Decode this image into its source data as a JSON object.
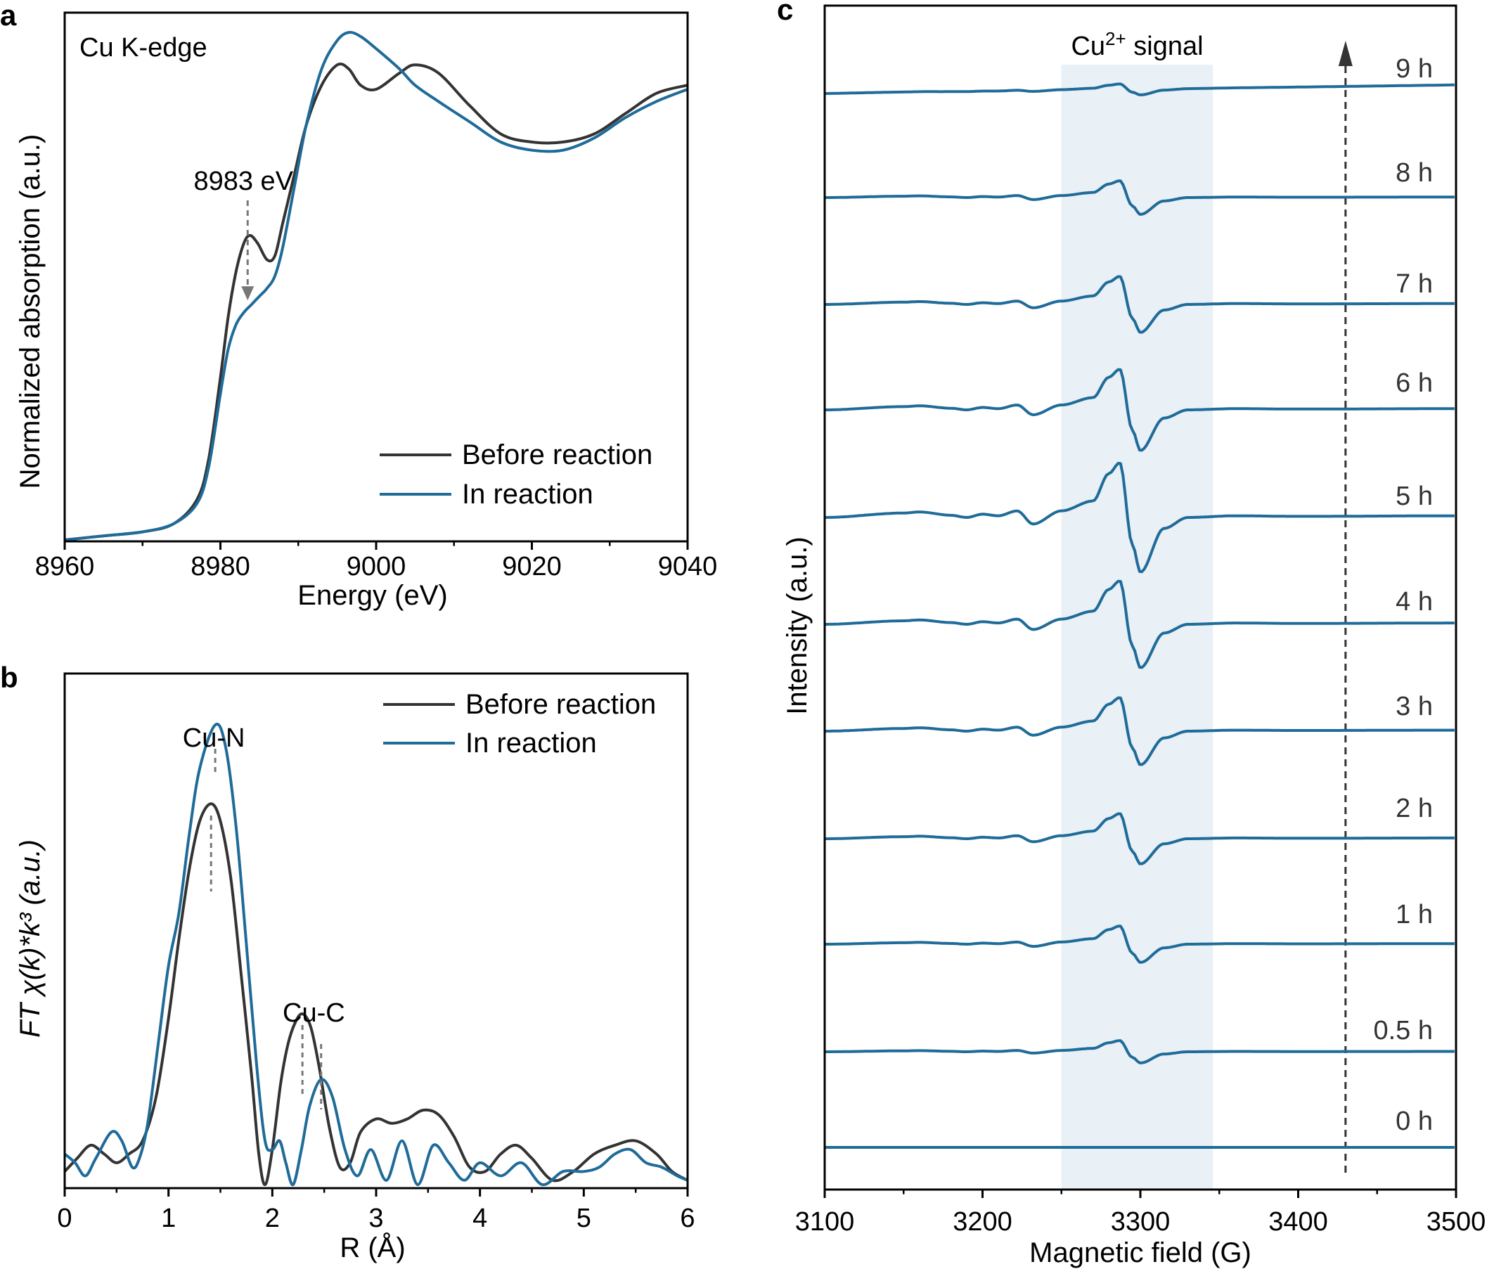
{
  "colors": {
    "before": "#333333",
    "in_reaction": "#1f6b99",
    "band": "#e9f0f6",
    "guide": "#777777"
  },
  "chart_data": [
    {
      "id": "a",
      "type": "line",
      "panel_label": "a",
      "title": "Cu K-edge",
      "xlabel": "Energy (eV)",
      "ylabel": "Normalized absorption (a.u.)",
      "xlim": [
        8960,
        9040
      ],
      "ylim": [
        0,
        1.2
      ],
      "xticks": [
        8960,
        8980,
        9000,
        9020,
        9040
      ],
      "xtick_labels": [
        "8960",
        "8980",
        "9000",
        "9020",
        "9040"
      ],
      "legend": {
        "position": "bottom-right",
        "entries": [
          "Before reaction",
          "In reaction"
        ]
      },
      "annotation": {
        "text": "8983 eV",
        "x": 8983.5,
        "y_from": 0.78,
        "y_to": 0.59
      },
      "series": [
        {
          "name": "Before reaction",
          "color": "#333333",
          "x": [
            8960,
            8965,
            8970,
            8974,
            8977,
            8978.5,
            8980,
            8981,
            8982,
            8983,
            8983.8,
            8984.8,
            8986,
            8987,
            8988,
            8989.5,
            8991,
            8993,
            8995,
            8996.5,
            8998,
            9000,
            9003,
            9005,
            9008,
            9012,
            9016,
            9020,
            9024,
            9028,
            9032,
            9036,
            9040
          ],
          "y": [
            0.0,
            0.01,
            0.02,
            0.04,
            0.1,
            0.2,
            0.4,
            0.55,
            0.66,
            0.73,
            0.75,
            0.73,
            0.69,
            0.7,
            0.78,
            0.9,
            1.02,
            1.12,
            1.17,
            1.16,
            1.12,
            1.11,
            1.15,
            1.17,
            1.15,
            1.07,
            1.0,
            0.98,
            0.98,
            1.0,
            1.05,
            1.1,
            1.12
          ]
        },
        {
          "name": "In reaction",
          "color": "#1f6b99",
          "x": [
            8960,
            8965,
            8970,
            8974,
            8977,
            8978.5,
            8980,
            8981,
            8982,
            8983,
            8984,
            8985,
            8986,
            8987,
            8988,
            8989.5,
            8991,
            8993,
            8995,
            8996.5,
            8998,
            9000,
            9003,
            9005,
            9008,
            9012,
            9016,
            9020,
            9024,
            9028,
            9032,
            9036,
            9040
          ],
          "y": [
            0.0,
            0.01,
            0.02,
            0.04,
            0.09,
            0.18,
            0.36,
            0.47,
            0.53,
            0.56,
            0.58,
            0.6,
            0.62,
            0.65,
            0.72,
            0.87,
            1.02,
            1.16,
            1.23,
            1.25,
            1.24,
            1.21,
            1.16,
            1.12,
            1.08,
            1.03,
            0.98,
            0.96,
            0.96,
            0.99,
            1.04,
            1.08,
            1.11
          ]
        }
      ]
    },
    {
      "id": "b",
      "type": "line",
      "panel_label": "b",
      "xlabel": "R (Å)",
      "ylabel": "FT χ(k)*k³ (a.u.)",
      "xlim": [
        0,
        6
      ],
      "ylim": [
        0,
        1.1
      ],
      "xticks": [
        0,
        1,
        2,
        3,
        4,
        5,
        6
      ],
      "xtick_labels": [
        "0",
        "1",
        "2",
        "3",
        "4",
        "5",
        "6"
      ],
      "legend": {
        "position": "top-right",
        "entries": [
          "Before reaction",
          "In reaction"
        ]
      },
      "annotations": [
        {
          "text": "Cu-N",
          "x_lines": [
            1.41,
            1.45
          ]
        },
        {
          "text": "Cu-C",
          "x_lines": [
            2.29,
            2.47
          ]
        }
      ],
      "series": [
        {
          "name": "Before reaction",
          "color": "#333333",
          "x": [
            0,
            0.12,
            0.25,
            0.38,
            0.5,
            0.62,
            0.75,
            0.88,
            1.0,
            1.1,
            1.2,
            1.3,
            1.41,
            1.5,
            1.6,
            1.7,
            1.8,
            1.87,
            1.93,
            2.0,
            2.08,
            2.15,
            2.22,
            2.29,
            2.37,
            2.45,
            2.55,
            2.65,
            2.75,
            2.85,
            3.0,
            3.15,
            3.3,
            3.45,
            3.6,
            3.75,
            3.9,
            4.05,
            4.2,
            4.35,
            4.5,
            4.7,
            4.9,
            5.1,
            5.3,
            5.5,
            5.7,
            5.85,
            6.0
          ],
          "y": [
            0.03,
            0.06,
            0.09,
            0.07,
            0.05,
            0.07,
            0.1,
            0.2,
            0.38,
            0.56,
            0.72,
            0.83,
            0.87,
            0.83,
            0.7,
            0.48,
            0.25,
            0.07,
            0.0,
            0.08,
            0.23,
            0.32,
            0.37,
            0.39,
            0.36,
            0.27,
            0.13,
            0.04,
            0.05,
            0.12,
            0.15,
            0.14,
            0.15,
            0.17,
            0.16,
            0.11,
            0.04,
            0.03,
            0.07,
            0.09,
            0.06,
            0.01,
            0.03,
            0.07,
            0.09,
            0.1,
            0.07,
            0.03,
            0.01
          ]
        },
        {
          "name": "In reaction",
          "color": "#1f6b99",
          "x": [
            0,
            0.1,
            0.2,
            0.3,
            0.45,
            0.55,
            0.65,
            0.72,
            0.8,
            0.9,
            1.0,
            1.1,
            1.2,
            1.3,
            1.45,
            1.55,
            1.65,
            1.75,
            1.85,
            1.93,
            2.0,
            2.07,
            2.13,
            2.2,
            2.28,
            2.36,
            2.47,
            2.58,
            2.7,
            2.82,
            2.95,
            3.1,
            3.25,
            3.4,
            3.55,
            3.7,
            3.85,
            4.0,
            4.2,
            4.4,
            4.6,
            4.8,
            5.0,
            5.15,
            5.3,
            5.45,
            5.6,
            5.75,
            5.9,
            6.0
          ],
          "y": [
            0.07,
            0.05,
            0.02,
            0.06,
            0.12,
            0.1,
            0.04,
            0.06,
            0.14,
            0.32,
            0.5,
            0.62,
            0.8,
            0.95,
            1.05,
            1.0,
            0.82,
            0.55,
            0.27,
            0.1,
            0.08,
            0.1,
            0.05,
            0.0,
            0.08,
            0.18,
            0.24,
            0.2,
            0.08,
            0.02,
            0.08,
            0.01,
            0.1,
            0.0,
            0.09,
            0.05,
            0.01,
            0.05,
            0.02,
            0.05,
            0.0,
            0.03,
            0.03,
            0.04,
            0.07,
            0.08,
            0.05,
            0.04,
            0.02,
            0.01
          ]
        }
      ]
    },
    {
      "id": "c",
      "type": "line",
      "panel_label": "c",
      "xlabel": "Magnetic field (G)",
      "ylabel": "Intensity (a.u.)",
      "xlim": [
        3100,
        3500
      ],
      "xticks": [
        3100,
        3200,
        3300,
        3400,
        3500
      ],
      "xtick_labels": [
        "3100",
        "3200",
        "3300",
        "3400",
        "3500"
      ],
      "shaded_region": {
        "x": [
          3250,
          3346
        ],
        "label_base": "Cu",
        "label_sup": "2+",
        "label_rest": " signal"
      },
      "arrow_x": 3430,
      "signal_shape": {
        "x": [
          3100,
          3150,
          3160,
          3180,
          3190,
          3200,
          3210,
          3222,
          3232,
          3250,
          3270,
          3280,
          3287,
          3295,
          3300,
          3315,
          3330,
          3360,
          3400,
          3500
        ],
        "y": [
          0.0,
          0.08,
          0.1,
          0.04,
          0.0,
          0.06,
          0.03,
          0.12,
          -0.12,
          0.12,
          0.3,
          0.8,
          1.0,
          -0.5,
          -1.0,
          -0.2,
          0.0,
          0.03,
          0.02,
          0.03
        ]
      },
      "series": [
        {
          "name": "9 h",
          "label": "9 h",
          "amplitude": 8,
          "slope": 6
        },
        {
          "name": "8 h",
          "label": "8 h",
          "amplitude": 24,
          "slope": 0
        },
        {
          "name": "7 h",
          "label": "7 h",
          "amplitude": 40,
          "slope": 0
        },
        {
          "name": "6 h",
          "label": "6 h",
          "amplitude": 58,
          "slope": 0
        },
        {
          "name": "5 h",
          "label": "5 h",
          "amplitude": 78,
          "slope": 0
        },
        {
          "name": "4 h",
          "label": "4 h",
          "amplitude": 62,
          "slope": 0
        },
        {
          "name": "3 h",
          "label": "3 h",
          "amplitude": 48,
          "slope": 0
        },
        {
          "name": "2 h",
          "label": "2 h",
          "amplitude": 36,
          "slope": 0
        },
        {
          "name": "1 h",
          "label": "1 h",
          "amplitude": 26,
          "slope": 0
        },
        {
          "name": "0.5 h",
          "label": "0.5 h",
          "amplitude": 16,
          "slope": 0
        },
        {
          "name": "0 h",
          "label": "0 h",
          "amplitude": 0,
          "slope": 0
        }
      ]
    }
  ]
}
